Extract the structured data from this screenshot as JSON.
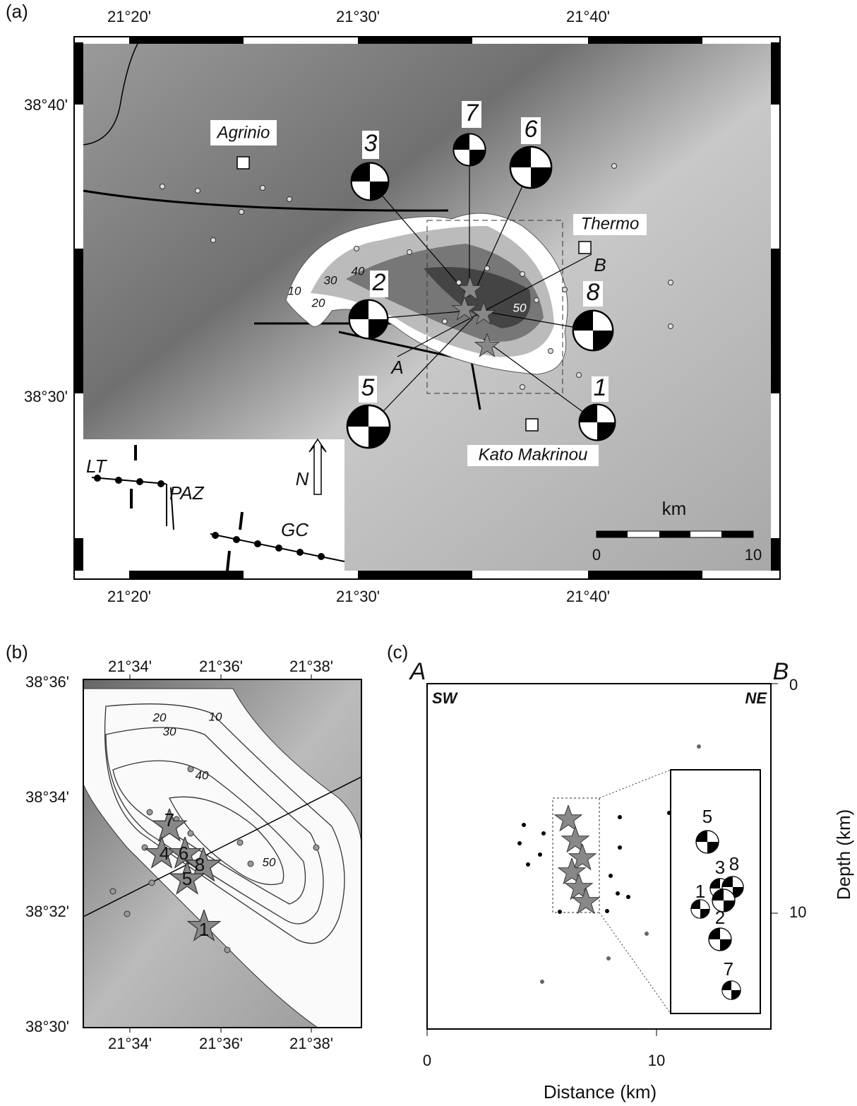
{
  "panel_a": {
    "label": "(a)",
    "lon_ticks": [
      "21°20'",
      "21°30'",
      "21°40'"
    ],
    "lat_ticks": [
      "38°40'",
      "38°30'"
    ],
    "places": [
      "Agrinio",
      "Thermo",
      "Kato Makrinou"
    ],
    "mechanisms": [
      1,
      2,
      3,
      5,
      6,
      7,
      8
    ],
    "contours": [
      10,
      20,
      30,
      40,
      50
    ],
    "profile_ends": [
      "A",
      "B"
    ],
    "inset": {
      "labels": [
        "LT",
        "PAZ",
        "GC"
      ],
      "north": "N"
    },
    "scale": {
      "unit": "km",
      "ticks": [
        0,
        10
      ]
    }
  },
  "panel_b": {
    "label": "(b)",
    "lon_ticks": [
      "21°34'",
      "21°36'",
      "21°38'"
    ],
    "lat_ticks": [
      "38°36'",
      "38°34'",
      "38°32'",
      "38°30'"
    ],
    "contours": [
      10,
      20,
      30,
      40,
      50
    ],
    "event_labels": [
      7,
      4,
      6,
      8,
      5,
      1
    ]
  },
  "panel_c": {
    "label": "(c)",
    "profile_ends": [
      "A",
      "B"
    ],
    "directions": [
      "SW",
      "NE"
    ],
    "depth_ticks": [
      0,
      10
    ],
    "depth_label": "Depth (km)",
    "distance_ticks": [
      0,
      10
    ],
    "distance_label": "Distance (km)",
    "inset_labels": [
      5,
      3,
      8,
      1,
      2,
      7
    ]
  }
}
